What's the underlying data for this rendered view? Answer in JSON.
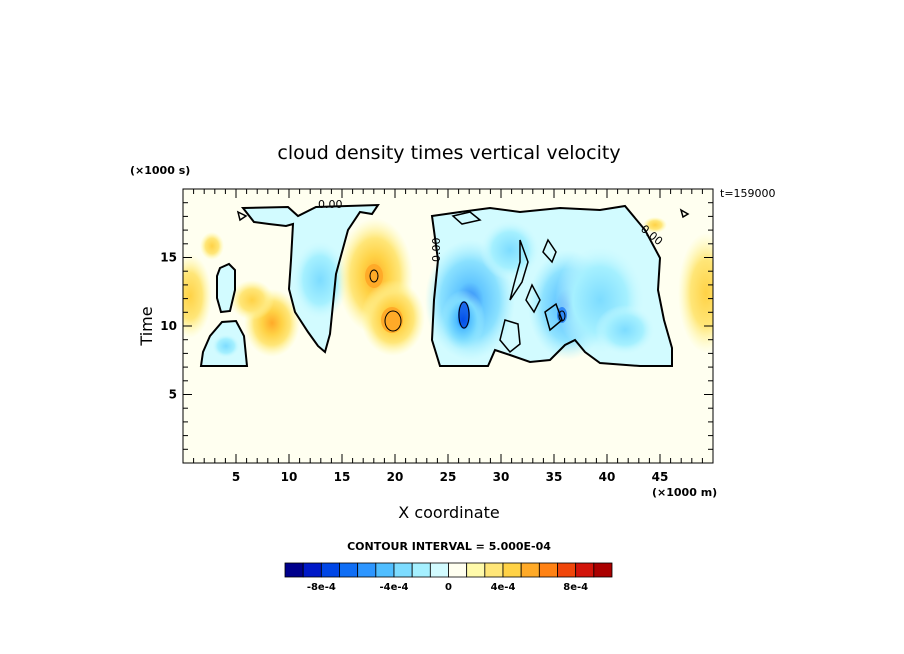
{
  "chart_data": {
    "type": "heatmap",
    "title": "cloud density times vertical velocity",
    "xlabel": "X coordinate",
    "ylabel": "Time",
    "x_unit": "(×1000 m)",
    "y_unit": "(×1000 s)",
    "time_stamp": "t=159000",
    "xlim": [
      0,
      50
    ],
    "ylim": [
      0,
      20
    ],
    "x_ticks": [
      5,
      10,
      15,
      20,
      25,
      30,
      35,
      40,
      45
    ],
    "y_ticks": [
      5,
      10,
      15
    ],
    "contour_label": "0.00",
    "contour_interval": "CONTOUR INTERVAL = 5.000E-04",
    "colorbar_labels": [
      "-8e-4",
      "-4e-4",
      "0",
      "4e-4",
      "8e-4"
    ],
    "colorbar_colors": [
      "#00008c",
      "#0019c8",
      "#0046e6",
      "#0f6ef5",
      "#2d96ff",
      "#50beff",
      "#7ddcff",
      "#a5f0ff",
      "#d2fbff",
      "#fffff0",
      "#fffaaa",
      "#ffe678",
      "#ffd246",
      "#ffaa28",
      "#ff8214",
      "#f0460a",
      "#d2140a",
      "#aa0000"
    ],
    "features": [
      {
        "kind": "positive",
        "x": 0.5,
        "y": 12,
        "value": 0.0003
      },
      {
        "kind": "positive",
        "x": 8.5,
        "y": 9.5,
        "value": 0.0004
      },
      {
        "kind": "positive",
        "x": 18,
        "y": 13,
        "value": 0.0008
      },
      {
        "kind": "positive",
        "x": 20,
        "y": 10.5,
        "value": 0.0008
      },
      {
        "kind": "positive",
        "x": 49.5,
        "y": 11.5,
        "value": 0.0003
      },
      {
        "kind": "negative",
        "x": 14,
        "y": 12,
        "value": -0.0003
      },
      {
        "kind": "negative",
        "x": 27,
        "y": 10.5,
        "value": -0.0008
      },
      {
        "kind": "negative",
        "x": 36,
        "y": 10.5,
        "value": -0.0007
      },
      {
        "kind": "negative",
        "x": 41,
        "y": 13,
        "value": -0.0003
      }
    ]
  }
}
